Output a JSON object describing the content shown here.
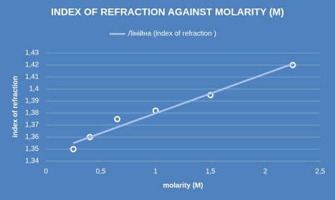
{
  "chart_data": {
    "type": "scatter",
    "title": "INDEX OF REFRACTION AGAINST MOLARITY (M)",
    "x_label": "molarity (M)",
    "y_label": "index of refraction",
    "series": [
      {
        "type": "scatter",
        "color": "#ffffff",
        "x": [
          0.25,
          0.4,
          0.65,
          1,
          1.5,
          2.25
        ],
        "values": [
          1.35,
          1.36,
          1.375,
          1.382,
          1.395,
          1.42
        ]
      },
      {
        "type": "line",
        "name": "Лінійна (index of refraction )",
        "color": "#a9c4ea",
        "x": [
          0.25,
          2.25
        ],
        "values": [
          1.355,
          1.421
        ]
      }
    ],
    "xlim": [
      0,
      2.5
    ],
    "xticks": [
      0,
      {
        "value": 0.5,
        "label": "0,5"
      },
      1,
      {
        "value": 1.5,
        "label": "1,5"
      },
      2,
      {
        "value": 2.5,
        "label": "2,5"
      }
    ],
    "ylim": [
      1.34,
      1.43
    ],
    "yticks": [
      {
        "value": 1.34,
        "label": "1,34"
      },
      {
        "value": 1.35,
        "label": "1,35"
      },
      {
        "value": 1.36,
        "label": "1,36"
      },
      {
        "value": 1.37,
        "label": "1,37"
      },
      {
        "value": 1.38,
        "label": "1,38"
      },
      {
        "value": 1.39,
        "label": "1,39"
      },
      {
        "value": 1.4,
        "label": "1,4"
      },
      {
        "value": 1.41,
        "label": "1,41"
      },
      {
        "value": 1.42,
        "label": "1,42"
      },
      {
        "value": 1.43,
        "label": "1,43"
      }
    ],
    "grid": true,
    "legend": "top"
  }
}
